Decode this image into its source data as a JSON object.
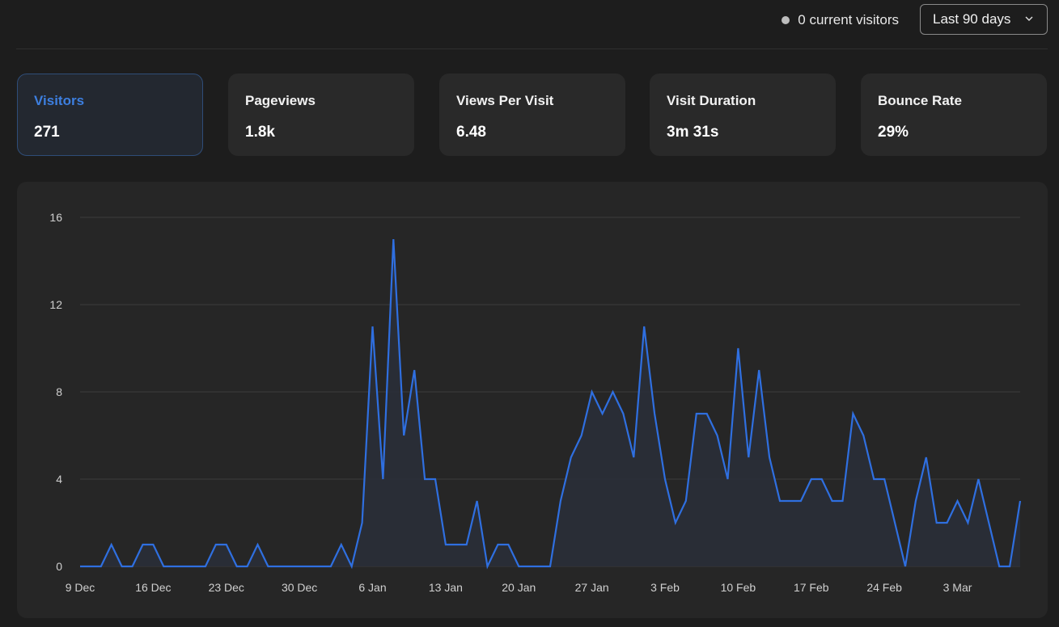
{
  "header": {
    "live_visitors": "0 current visitors",
    "date_range": "Last 90 days"
  },
  "metrics": [
    {
      "label": "Visitors",
      "value": "271",
      "active": true
    },
    {
      "label": "Pageviews",
      "value": "1.8k",
      "active": false
    },
    {
      "label": "Views Per Visit",
      "value": "6.48",
      "active": false
    },
    {
      "label": "Visit Duration",
      "value": "3m 31s",
      "active": false
    },
    {
      "label": "Bounce Rate",
      "value": "29%",
      "active": false
    }
  ],
  "colors": {
    "line": "#2f6fe0",
    "area": "#2a2f38",
    "grid": "#3c3c3c",
    "active_label": "#3d7fe0"
  },
  "chart_data": {
    "type": "area",
    "title": "",
    "xlabel": "",
    "ylabel": "",
    "ylim": [
      0,
      16
    ],
    "yticks": [
      0,
      4,
      8,
      12,
      16
    ],
    "grid": true,
    "x_start": "9 Dec",
    "xtick_labels": [
      "9 Dec",
      "16 Dec",
      "23 Dec",
      "30 Dec",
      "6 Jan",
      "13 Jan",
      "20 Jan",
      "27 Jan",
      "3 Feb",
      "10 Feb",
      "17 Feb",
      "24 Feb",
      "3 Mar"
    ],
    "xtick_positions": [
      0,
      7,
      14,
      21,
      28,
      35,
      42,
      49,
      56,
      63,
      70,
      77,
      84
    ],
    "series": [
      {
        "values": [
          0,
          0,
          0,
          1,
          0,
          0,
          1,
          1,
          0,
          0,
          0,
          0,
          0,
          1,
          1,
          0,
          0,
          1,
          0,
          0,
          0,
          0,
          0,
          0,
          0,
          1,
          0,
          2,
          11,
          4,
          15,
          6,
          9,
          4,
          4,
          1,
          1,
          1,
          3,
          0,
          1,
          1,
          0,
          0,
          0,
          0,
          3,
          5,
          6,
          8,
          7,
          8,
          7,
          5,
          11,
          7,
          4,
          2,
          3,
          7,
          7,
          6,
          4,
          10,
          5,
          9,
          5,
          3,
          3,
          3,
          4,
          4,
          3,
          3,
          7,
          6,
          4,
          4,
          2,
          0,
          3,
          5,
          2,
          2,
          3,
          2,
          4,
          2,
          0,
          0,
          3
        ]
      }
    ]
  }
}
